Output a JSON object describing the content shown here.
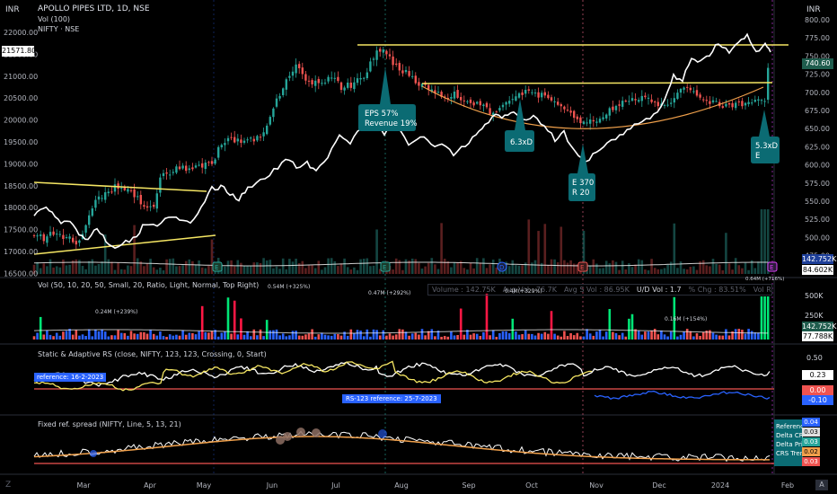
{
  "header": {
    "currency_left": "INR",
    "currency_right": "INR",
    "symbol": "APOLLO PIPES LTD, 1D, NSE",
    "volume_label": "Vol (100)",
    "index_label": "NIFTY · NSE"
  },
  "price_axis": {
    "right_ticks": [
      "800.00",
      "775.00",
      "750.00",
      "725.00",
      "700.00",
      "675.00",
      "650.00",
      "625.00",
      "600.00",
      "575.00",
      "550.00",
      "525.00",
      "500.00",
      "475.00"
    ],
    "right_current": "740.60",
    "vol_badge_1": "142.752K",
    "vol_badge_2": "84.602K",
    "left_ticks": [
      "22000.00",
      "21500.00",
      "21000.00",
      "20500.00",
      "20000.00",
      "19500.00",
      "19000.00",
      "18500.00",
      "18000.00",
      "17500.00",
      "17000.00",
      "16500.00"
    ],
    "left_current": "21571.80"
  },
  "callouts": [
    {
      "id": "eps",
      "line1": "EPS 57%",
      "line2": "Revenue 19%"
    },
    {
      "id": "b1",
      "line1": "6.3xD",
      "line2": ""
    },
    {
      "id": "earn",
      "line1": "E 370",
      "line2": "R 20"
    },
    {
      "id": "b2",
      "line1": "5.3xD",
      "line2": "E"
    }
  ],
  "vol_panel": {
    "title": "Vol (50, 10, 20, 50, Small, 20, Ratio, Light, Normal, Top Right)",
    "ticks": [
      "500K",
      "250K"
    ],
    "badge_1": "142.752K",
    "badge_2": "77.788K",
    "stats": [
      "Volume : 142.75K",
      "Avg Vol : 76.7K",
      "Avg S Vol : 86.95K",
      "U/D Vol : 1.7",
      "% Chg : 83.51%",
      "Vol Run Rate : 66.72%"
    ],
    "annotations": [
      "0.24M (+239%)",
      "0.54M (+325%)",
      "0.47M (+292%)",
      "0.4M(+329%)",
      "0.16M (+154%)",
      "0.64M (+716%)"
    ]
  },
  "rs_panel": {
    "title": "Static & Adaptive RS (close, NIFTY, 123, 123, Crossing, 0, Start)",
    "ticks": [
      "0.50",
      "0.00"
    ],
    "badge_1": "0.23",
    "badge_2": "0.00",
    "badge_3": "-0.10",
    "label_1": "reference: 16-2-2023",
    "label_2": "RS-123 reference: 25-7-2023"
  },
  "spread_panel": {
    "title": "Fixed ref. spread (NIFTY, Line, 5, 13, 21)",
    "legend": [
      "Reference",
      "Delta CRS",
      "Delta Price",
      "CRS Trend"
    ],
    "badges": [
      "0.04",
      "0.03",
      "0.03",
      "0.02",
      "0.03"
    ]
  },
  "time_axis": [
    "Mar",
    "Apr",
    "May",
    "Jun",
    "Jul",
    "Aug",
    "Sep",
    "Oct",
    "Nov",
    "Dec",
    "2024",
    "Feb"
  ],
  "colors": {
    "up": "#26a69a",
    "down": "#ef5350",
    "trend": "#f5e663",
    "rs_line": "#ffffff",
    "callout": "#0b6b73",
    "accent_blue": "#2962ff"
  },
  "chart_data": [
    {
      "type": "candlestick",
      "title": "APOLLO PIPES LTD, 1D, NSE",
      "series": [
        {
          "name": "APOLLO PIPES LTD",
          "x": [
            "2023-02",
            "2023-03",
            "2023-04",
            "2023-05",
            "2023-06",
            "2023-07",
            "2023-08",
            "2023-09",
            "2023-10",
            "2023-11",
            "2023-12",
            "2024-01"
          ],
          "values": [
            490,
            515,
            540,
            600,
            650,
            740,
            705,
            680,
            660,
            680,
            690,
            740.6
          ]
        },
        {
          "name": "NIFTY",
          "x": [
            "2023-02",
            "2023-03",
            "2023-04",
            "2023-05",
            "2023-06",
            "2023-07",
            "2023-08",
            "2023-09",
            "2023-10",
            "2023-11",
            "2023-12",
            "2024-01"
          ],
          "values": [
            17900,
            17100,
            17700,
            18500,
            18800,
            19600,
            19300,
            19650,
            19050,
            19800,
            21500,
            21571.8
          ]
        }
      ],
      "ylim": [
        475,
        800
      ],
      "ylim_left": [
        16500,
        22000
      ]
    },
    {
      "type": "bar",
      "title": "Vol (50, 10, 20, 50, Small, 20, Ratio, Light, Normal, Top Right)",
      "values_last": 142.752,
      "ylim": [
        0,
        500
      ]
    },
    {
      "type": "line",
      "title": "Static & Adaptive RS (close, NIFTY, 123, 123, Crossing, 0, Start)",
      "last_values": [
        0.23,
        0.0,
        -0.1
      ],
      "ylim": [
        -0.2,
        0.5
      ]
    },
    {
      "type": "line",
      "title": "Fixed ref. spread (NIFTY, Line, 5, 13, 21)",
      "last_values": [
        0.04,
        0.03,
        0.03,
        0.02,
        0.03
      ]
    }
  ]
}
